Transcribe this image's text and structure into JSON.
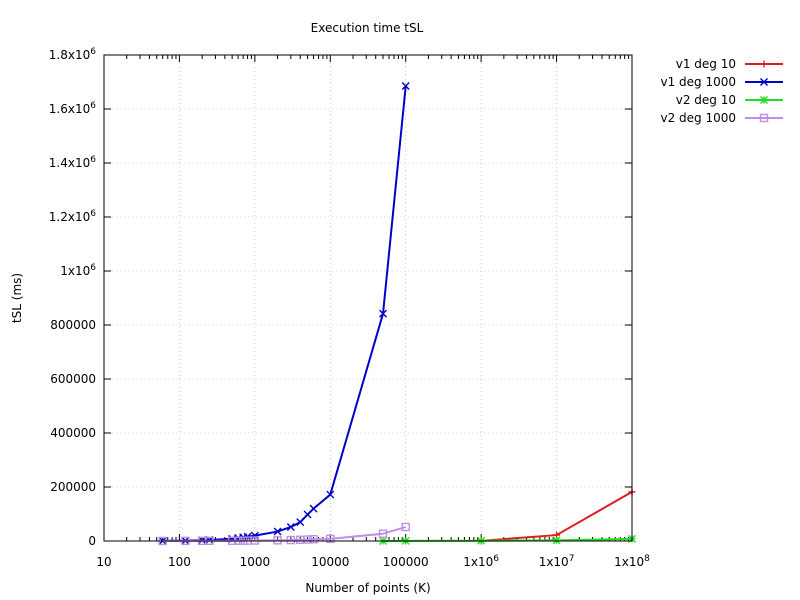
{
  "chart_data": {
    "type": "line",
    "title": "Execution time tSL",
    "xlabel": "Number of points (K)",
    "ylabel": "tSL (ms)",
    "xscale": "log",
    "xlim": [
      10,
      100000000
    ],
    "ylim": [
      0,
      1800000
    ],
    "grid": true,
    "legend_position": "top-right-outside",
    "x_ticks": [
      {
        "value": 10,
        "base": "10",
        "exp": ""
      },
      {
        "value": 100,
        "base": "100",
        "exp": ""
      },
      {
        "value": 1000,
        "base": "1000",
        "exp": ""
      },
      {
        "value": 10000,
        "base": "10000",
        "exp": ""
      },
      {
        "value": 100000,
        "base": "100000",
        "exp": ""
      },
      {
        "value": 1000000,
        "base": "1x10",
        "exp": "6"
      },
      {
        "value": 10000000,
        "base": "1x10",
        "exp": "7"
      },
      {
        "value": 100000000,
        "base": "1x10",
        "exp": "8"
      }
    ],
    "y_ticks": [
      {
        "value": 0,
        "base": "0",
        "exp": ""
      },
      {
        "value": 200000,
        "base": "200000",
        "exp": ""
      },
      {
        "value": 400000,
        "base": "400000",
        "exp": ""
      },
      {
        "value": 600000,
        "base": "600000",
        "exp": ""
      },
      {
        "value": 800000,
        "base": "800000",
        "exp": ""
      },
      {
        "value": 1000000,
        "base": "1x10",
        "exp": "6"
      },
      {
        "value": 1200000,
        "base": "1.2x10",
        "exp": "6"
      },
      {
        "value": 1400000,
        "base": "1.4x10",
        "exp": "6"
      },
      {
        "value": 1600000,
        "base": "1.6x10",
        "exp": "6"
      },
      {
        "value": 1800000,
        "base": "1.8x10",
        "exp": "6"
      }
    ],
    "series": [
      {
        "name": "v1 deg 10",
        "color": "#e41a1c",
        "marker": "plus",
        "x": [
          1000000,
          10000000,
          100000000
        ],
        "y": [
          500,
          22000,
          182000
        ]
      },
      {
        "name": "v1 deg 1000",
        "color": "#0000cc",
        "marker": "x",
        "x": [
          60,
          120,
          200,
          250,
          500,
          600,
          700,
          800,
          1000,
          2000,
          3000,
          4000,
          5000,
          6000,
          10000,
          50000,
          100000
        ],
        "y": [
          500,
          1500,
          3000,
          4000,
          8000,
          11000,
          14000,
          16000,
          20000,
          35000,
          52000,
          70000,
          98000,
          120000,
          172000,
          842000,
          1685000
        ]
      },
      {
        "name": "v2 deg 10",
        "color": "#22dd22",
        "marker": "star",
        "x": [
          50000,
          100000,
          1000000,
          10000000,
          100000000
        ],
        "y": [
          200,
          300,
          800,
          2500,
          8000
        ]
      },
      {
        "name": "v2 deg 1000",
        "color": "#bf8fe8",
        "marker": "square",
        "x": [
          60,
          120,
          200,
          250,
          500,
          600,
          700,
          800,
          1000,
          2000,
          3000,
          4000,
          5000,
          6000,
          10000,
          50000,
          100000
        ],
        "y": [
          200,
          400,
          500,
          600,
          800,
          1000,
          1200,
          1400,
          1800,
          2500,
          3500,
          4500,
          5500,
          6500,
          8000,
          27000,
          52000
        ]
      }
    ]
  }
}
